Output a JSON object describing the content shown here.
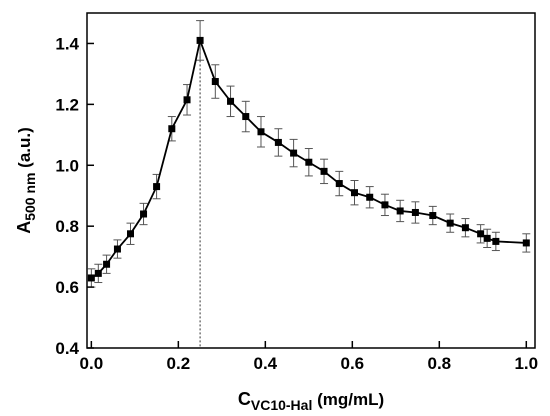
{
  "chart_data": {
    "type": "line",
    "title": "",
    "xlabel": {
      "base": "C",
      "subscript": "VC10-Hal",
      "suffix": " (mg/mL)"
    },
    "ylabel": {
      "base": "A",
      "subscript": "500 nm",
      "suffix": " (a.u.)"
    },
    "xlim": [
      -0.01,
      1.02
    ],
    "ylim": [
      0.4,
      1.5
    ],
    "xticks": [
      0.0,
      0.2,
      0.4,
      0.6,
      0.8,
      1.0
    ],
    "xtick_labels": [
      "0.0",
      "0.2",
      "0.4",
      "0.6",
      "0.8",
      "1.0"
    ],
    "yticks": [
      0.4,
      0.6,
      0.8,
      1.0,
      1.2,
      1.4
    ],
    "ytick_labels": [
      "0.4",
      "0.6",
      "0.8",
      "1.0",
      "1.2",
      "1.4"
    ],
    "grid": false,
    "marker": "square",
    "line_color": "#000000",
    "errorbar_color": "#555555",
    "reference_line": {
      "x": 0.25,
      "style": "dotted"
    },
    "series": [
      {
        "x": [
          0.0,
          0.016,
          0.035,
          0.06,
          0.09,
          0.12,
          0.15,
          0.185,
          0.22,
          0.25,
          0.285,
          0.32,
          0.355,
          0.39,
          0.43,
          0.465,
          0.5,
          0.535,
          0.57,
          0.605,
          0.64,
          0.675,
          0.71,
          0.745,
          0.785,
          0.825,
          0.86,
          0.895,
          0.91,
          0.93,
          1.0
        ],
        "y": [
          0.63,
          0.645,
          0.675,
          0.725,
          0.775,
          0.84,
          0.93,
          1.12,
          1.215,
          1.41,
          1.275,
          1.21,
          1.16,
          1.11,
          1.075,
          1.04,
          1.01,
          0.98,
          0.94,
          0.91,
          0.895,
          0.87,
          0.85,
          0.845,
          0.835,
          0.81,
          0.795,
          0.775,
          0.76,
          0.75,
          0.745
        ],
        "error": [
          0.03,
          0.03,
          0.03,
          0.03,
          0.035,
          0.035,
          0.04,
          0.04,
          0.05,
          0.065,
          0.055,
          0.05,
          0.05,
          0.05,
          0.045,
          0.045,
          0.045,
          0.04,
          0.04,
          0.04,
          0.035,
          0.035,
          0.035,
          0.035,
          0.03,
          0.03,
          0.03,
          0.03,
          0.03,
          0.03,
          0.03
        ]
      }
    ]
  }
}
